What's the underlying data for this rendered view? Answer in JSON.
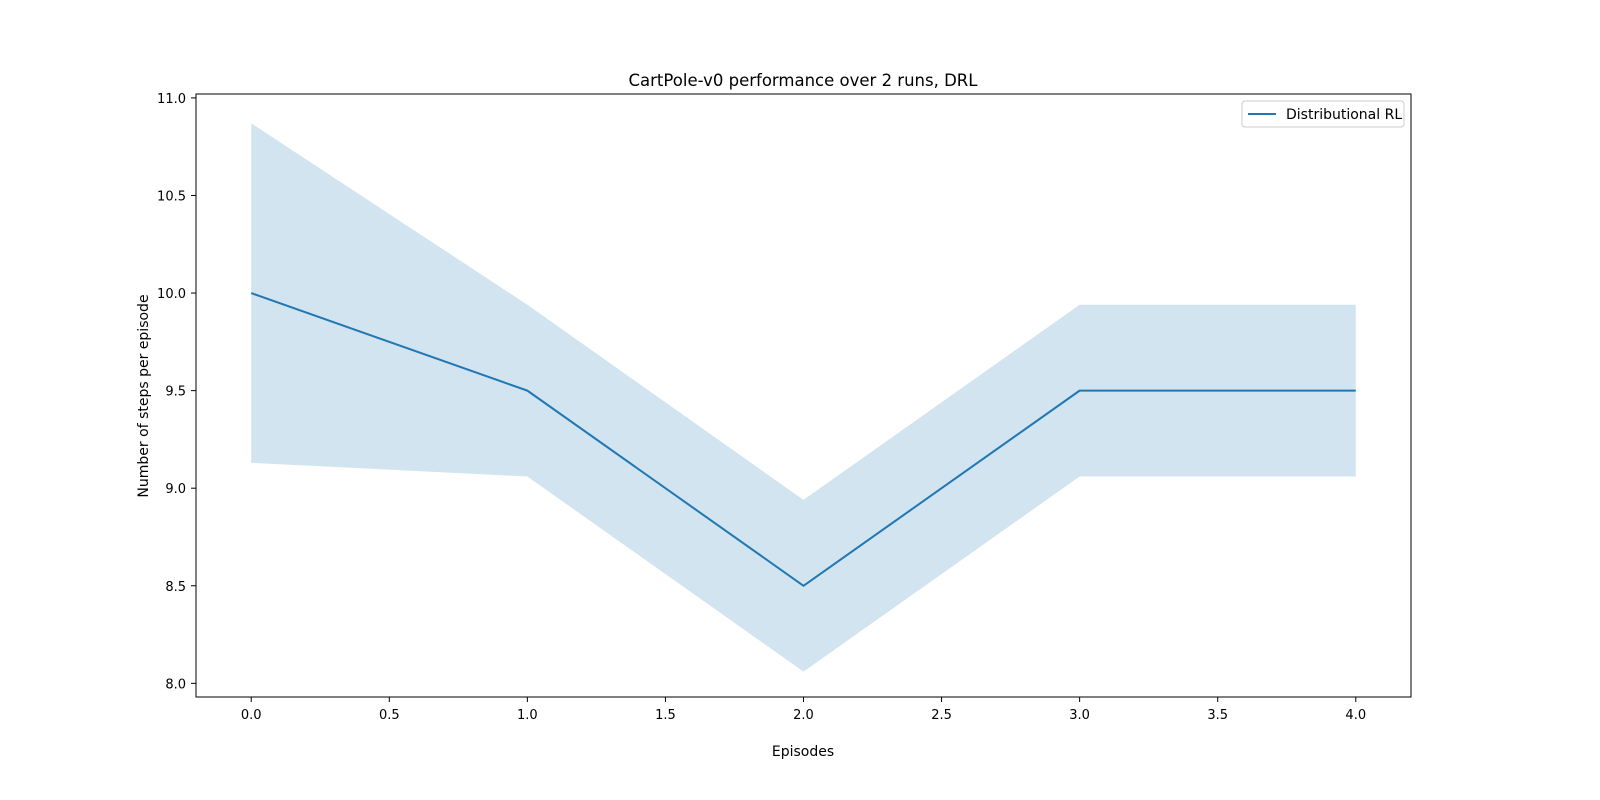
{
  "chart_data": {
    "type": "line",
    "title": "CartPole-v0 performance over 2 runs, DRL",
    "xlabel": "Episodes",
    "ylabel": "Number of steps per episode",
    "x": [
      0,
      1,
      2,
      3,
      4
    ],
    "xlim": [
      -0.2,
      4.2
    ],
    "ylim": [
      7.93,
      11.02
    ],
    "xticks": [
      0.0,
      0.5,
      1.0,
      1.5,
      2.0,
      2.5,
      3.0,
      3.5,
      4.0
    ],
    "xtick_labels": [
      "0.0",
      "0.5",
      "1.0",
      "1.5",
      "2.0",
      "2.5",
      "3.0",
      "3.5",
      "4.0"
    ],
    "yticks": [
      8.0,
      8.5,
      9.0,
      9.5,
      10.0,
      10.5,
      11.0
    ],
    "ytick_labels": [
      "8.0",
      "8.5",
      "9.0",
      "9.5",
      "10.0",
      "10.5",
      "11.0"
    ],
    "grid": false,
    "legend_position": "top-right",
    "series": [
      {
        "name": "Distributional RL",
        "color": "#1f77b4",
        "values": [
          10.0,
          9.5,
          8.5,
          9.5,
          9.5
        ],
        "band_upper": [
          10.87,
          9.94,
          8.94,
          9.94,
          9.94
        ],
        "band_lower": [
          9.13,
          9.06,
          8.06,
          9.06,
          9.06
        ],
        "band_color": "#1f77b4",
        "band_opacity": 0.2
      }
    ]
  }
}
